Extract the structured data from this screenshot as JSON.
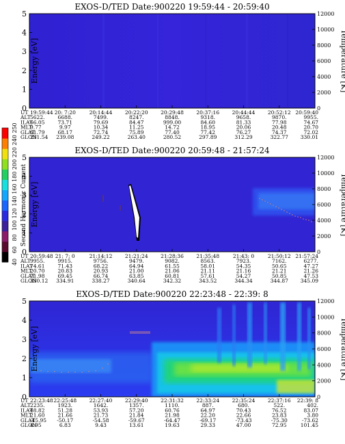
{
  "colorbar": {
    "label": "Second Harmonic Current",
    "ticks": [
      "40",
      "60",
      "80",
      "100",
      "120",
      "140",
      "160",
      "180",
      "200",
      "220",
      "240",
      "250"
    ],
    "colors": [
      "#000000",
      "#5a0a2e",
      "#8b1a6b",
      "#3b1f9c",
      "#2a2ae0",
      "#1a64ff",
      "#10a8ff",
      "#18e0e0",
      "#20d060",
      "#90e020",
      "#f0e010",
      "#ff8000",
      "#ff0000"
    ]
  },
  "panels": [
    {
      "title": "EXOS-D/TED   Date:900220  19:59:44 - 20:59:40",
      "ylabel_left": "Energy [eV]",
      "ylabel_right": "Temperature [K]",
      "yticks_left": [
        "0",
        "1",
        "2",
        "3",
        "4",
        "5"
      ],
      "yticks_right": [
        "0",
        "2000",
        "4000",
        "6000",
        "8000",
        "10000",
        "12000"
      ],
      "row_labels": [
        "UT",
        "ALT",
        "ILAT",
        "MLT",
        "GLAT",
        "GLON"
      ],
      "columns": [
        [
          "19:59:44",
          "5622.",
          "66.05",
          "9.77",
          "61.79",
          "231.54"
        ],
        [
          "20: 7:20",
          "6688.",
          "73.71",
          "9.97",
          "68.17",
          "239.08"
        ],
        [
          "20:14:44",
          "7499.",
          "79.69",
          "10.34",
          "72.74",
          "249.22"
        ],
        [
          "20:22:20",
          "8247.",
          "84.47",
          "11.25",
          "75.89",
          "263.40"
        ],
        [
          "20:29:48",
          "8848.",
          "999.00",
          "14.72",
          "77.40",
          "280.52"
        ],
        [
          "20:37:16",
          "9318.",
          "84.60",
          "18.95",
          "77.42",
          "297.89"
        ],
        [
          "20:44:44",
          "9658.",
          "81.33",
          "20.06",
          "76.27",
          "312.29"
        ],
        [
          "20:52:12",
          "9870.",
          "77.98",
          "20.48",
          "74.37",
          "322.77"
        ],
        [
          "20:59:40",
          "9955.",
          "74.67",
          "20.70",
          "72.02",
          "330.01"
        ]
      ]
    },
    {
      "title": "EXOS-D/TED   Date:900220  20:59:48 - 21:57:24",
      "ylabel_left": "Energy [eV]",
      "ylabel_right": "Temperature [K]",
      "yticks_left": [
        "0",
        "1",
        "2",
        "3",
        "4",
        "5"
      ],
      "yticks_right": [
        "0",
        "2000",
        "4000",
        "6000",
        "8000",
        "10000",
        "12000"
      ],
      "row_labels": [
        "UT",
        "ALT",
        "ILAT",
        "MLT",
        "GLAT",
        "GLON"
      ],
      "columns": [
        [
          "20:59:48",
          "9955.",
          "74.61",
          "20.70",
          "71.98",
          "330.12"
        ],
        [
          "21: 7: 0",
          "9915.",
          "71.43",
          "20.83",
          "69.45",
          "334.91"
        ],
        [
          "21:14:12",
          "9756.",
          "68.22",
          "20.93",
          "66.74",
          "338.27"
        ],
        [
          "21:21:24",
          "9479.",
          "64.94",
          "21.00",
          "63.85",
          "340.64"
        ],
        [
          "21:28:36",
          "9082.",
          "61.55",
          "21.06",
          "60.81",
          "342.32"
        ],
        [
          "21:35:48",
          "8563.",
          "58.01",
          "21.11",
          "57.61",
          "343.52"
        ],
        [
          "21:43: 0",
          "7923.",
          "54.35",
          "21.16",
          "54.27",
          "344.34"
        ],
        [
          "21:50:12",
          "7162.",
          "50.65",
          "21.21",
          "50.85",
          "344.87"
        ],
        [
          "21:57:24",
          "6277.",
          "47.27",
          "21.26",
          "47.53",
          "345.09"
        ]
      ]
    },
    {
      "title": "EXOS-D/TED   Date:900220  22:23:48 - 22:39: 8",
      "ylabel_left": "Energy [eV]",
      "ylabel_right": "Temperature [K]",
      "yticks_left": [
        "0",
        "1",
        "2",
        "3",
        "4",
        "5"
      ],
      "yticks_right": [
        "0",
        "2000",
        "4000",
        "6000",
        "8000",
        "10000",
        "12000"
      ],
      "row_labels": [
        "UT",
        "ALT",
        "ILAT",
        "MLT",
        "GLAT",
        "GLON"
      ],
      "columns": [
        [
          "22:23:48",
          "2235.",
          "48.82",
          "21.60",
          "-45.95",
          "4.95"
        ],
        [
          "22:25:48",
          "1923.",
          "51.28",
          "21.66",
          "-50.17",
          "6.83"
        ],
        [
          "22:27:40",
          "1642.",
          "53.93",
          "21.73",
          "-54.58",
          "9.43"
        ],
        [
          "22:29:40",
          "1357.",
          "57.20",
          "21.84",
          "-59.67",
          "13.61"
        ],
        [
          "22:31:32",
          "1110.",
          "60.76",
          "21.98",
          "-64.47",
          "19.63"
        ],
        [
          "22:33:24",
          "887.",
          "64.97",
          "22.20",
          "-69.17",
          "29.33"
        ],
        [
          "22:35:24",
          "680.",
          "70.43",
          "22.66",
          "-73.43",
          "47.00"
        ],
        [
          "22:37:16",
          "522.",
          "76.52",
          "23.83",
          "-75.30",
          "72.95"
        ],
        [
          "22:39: 8",
          "402.",
          "83.07",
          "3.80",
          "-73.62",
          "101.45"
        ]
      ]
    }
  ],
  "chart_data": [
    {
      "type": "heatmap",
      "title": "EXOS-D/TED   Date:900220  19:59:44 - 20:59:40",
      "x": [
        "19:59:44",
        "20: 7:20",
        "20:14:44",
        "20:22:20",
        "20:29:48",
        "20:37:16",
        "20:44:44",
        "20:52:12",
        "20:59:40"
      ],
      "ylabel": "Energy [eV]",
      "ylim": [
        0,
        5
      ],
      "y2label": "Temperature [K]",
      "y2lim": [
        0,
        12000
      ],
      "colorbar_label": "Second Harmonic Current"
    },
    {
      "type": "heatmap",
      "title": "EXOS-D/TED   Date:900220  20:59:48 - 21:57:24",
      "x": [
        "20:59:48",
        "21: 7: 0",
        "21:14:12",
        "21:21:24",
        "21:28:36",
        "21:35:48",
        "21:43: 0",
        "21:50:12",
        "21:57:24"
      ],
      "ylabel": "Energy [eV]",
      "ylim": [
        0,
        5
      ],
      "y2label": "Temperature [K]",
      "y2lim": [
        0,
        12000
      ],
      "colorbar_label": "Second Harmonic Current"
    },
    {
      "type": "heatmap",
      "title": "EXOS-D/TED   Date:900220  22:23:48 - 22:39: 8",
      "x": [
        "22:23:48",
        "22:25:48",
        "22:27:40",
        "22:29:40",
        "22:31:32",
        "22:33:24",
        "22:35:24",
        "22:37:16",
        "22:39: 8"
      ],
      "ylabel": "Energy [eV]",
      "ylim": [
        0,
        5
      ],
      "y2label": "Temperature [K]",
      "y2lim": [
        0,
        12000
      ],
      "colorbar_label": "Second Harmonic Current"
    }
  ]
}
